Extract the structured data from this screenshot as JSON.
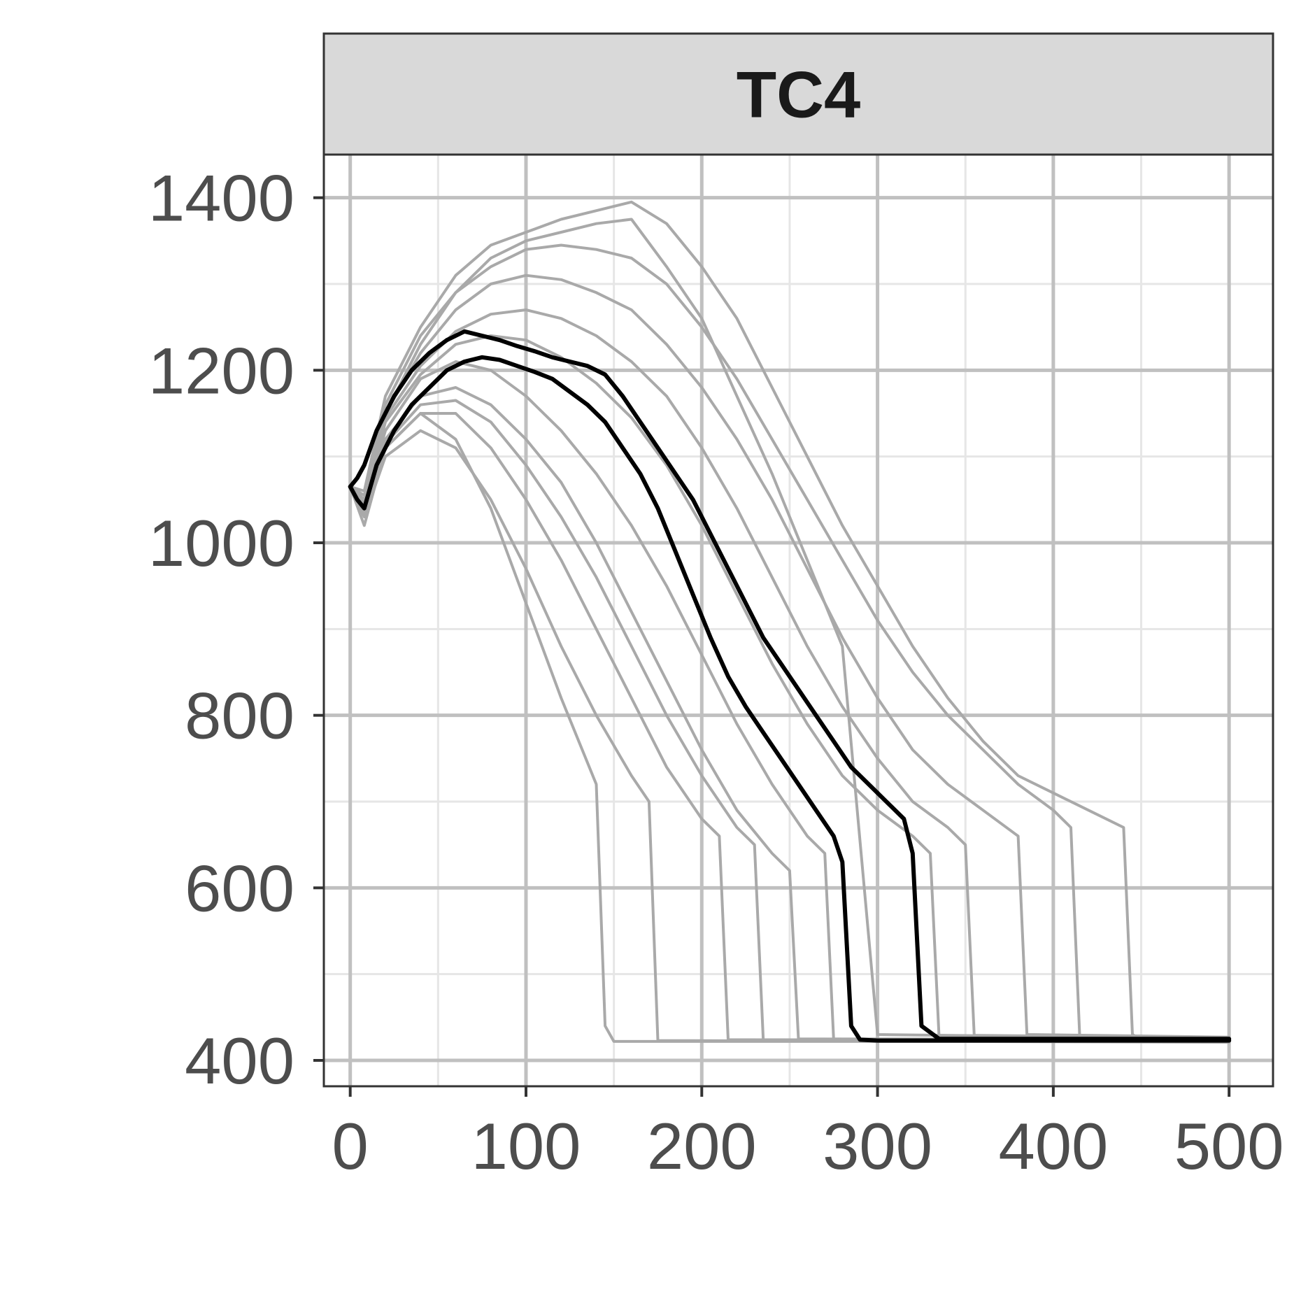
{
  "chart_data": {
    "type": "line",
    "facet_label": "TC4",
    "xlabel": "",
    "ylabel": "",
    "xlim": [
      -15,
      525
    ],
    "ylim": [
      370,
      1450
    ],
    "x_ticks": [
      0,
      100,
      200,
      300,
      400,
      500
    ],
    "x_tick_labels": [
      "0",
      "100",
      "200",
      "300",
      "400",
      "500"
    ],
    "y_ticks": [
      400,
      600,
      800,
      1000,
      1200,
      1400
    ],
    "y_tick_labels": [
      "400",
      "600",
      "800",
      "1000",
      "1200",
      "1400"
    ],
    "grid": true,
    "colors": {
      "ensemble": "#a9a9a9",
      "highlight": "#000000",
      "panel_border": "#333333",
      "strip_fill": "#d9d9d9",
      "grid": "#c0c0c0",
      "minor_grid": "#e6e6e6"
    },
    "series": [
      {
        "color": "#a9a9a9",
        "x": [
          0,
          8,
          20,
          40,
          60,
          80,
          100,
          120,
          140,
          145,
          150,
          500
        ],
        "y": [
          1065,
          1020,
          1110,
          1150,
          1120,
          1040,
          930,
          820,
          720,
          440,
          422,
          422
        ]
      },
      {
        "color": "#a9a9a9",
        "x": [
          0,
          8,
          20,
          40,
          60,
          80,
          100,
          120,
          140,
          160,
          180,
          200,
          220,
          240,
          260,
          280,
          300,
          500
        ],
        "y": [
          1065,
          1050,
          1150,
          1230,
          1290,
          1330,
          1350,
          1360,
          1370,
          1375,
          1320,
          1260,
          1170,
          1080,
          980,
          880,
          430,
          425
        ]
      },
      {
        "color": "#a9a9a9",
        "x": [
          0,
          8,
          20,
          40,
          60,
          80,
          100,
          120,
          140,
          160,
          180,
          200,
          220,
          240,
          260,
          280,
          300,
          320,
          340,
          360,
          380,
          400,
          420,
          440,
          445,
          450,
          500
        ],
        "y": [
          1065,
          1060,
          1170,
          1250,
          1310,
          1345,
          1360,
          1375,
          1385,
          1395,
          1370,
          1320,
          1260,
          1180,
          1100,
          1020,
          950,
          880,
          820,
          770,
          730,
          710,
          690,
          670,
          430,
          424,
          424
        ]
      },
      {
        "color": "#a9a9a9",
        "x": [
          0,
          8,
          20,
          40,
          60,
          80,
          100,
          120,
          140,
          160,
          180,
          200,
          220,
          240,
          260,
          280,
          300,
          320,
          340,
          360,
          380,
          400,
          410,
          415,
          500
        ],
        "y": [
          1065,
          1055,
          1160,
          1240,
          1290,
          1320,
          1340,
          1345,
          1340,
          1330,
          1300,
          1250,
          1190,
          1120,
          1050,
          980,
          910,
          850,
          800,
          760,
          720,
          690,
          670,
          428,
          426
        ]
      },
      {
        "color": "#a9a9a9",
        "x": [
          0,
          8,
          20,
          40,
          60,
          80,
          100,
          120,
          140,
          160,
          180,
          200,
          220,
          240,
          260,
          280,
          300,
          320,
          340,
          360,
          380,
          385,
          500
        ],
        "y": [
          1065,
          1050,
          1150,
          1220,
          1270,
          1300,
          1310,
          1305,
          1290,
          1270,
          1230,
          1180,
          1120,
          1050,
          970,
          890,
          820,
          760,
          720,
          690,
          660,
          430,
          427
        ]
      },
      {
        "color": "#a9a9a9",
        "x": [
          0,
          8,
          20,
          40,
          60,
          80,
          100,
          120,
          140,
          160,
          180,
          200,
          220,
          240,
          260,
          270,
          275,
          500
        ],
        "y": [
          1065,
          1045,
          1130,
          1190,
          1210,
          1200,
          1170,
          1130,
          1080,
          1020,
          950,
          870,
          790,
          720,
          660,
          640,
          425,
          424
        ]
      },
      {
        "color": "#a9a9a9",
        "x": [
          0,
          8,
          20,
          40,
          60,
          80,
          100,
          120,
          140,
          160,
          180,
          200,
          220,
          240,
          250,
          255,
          500
        ],
        "y": [
          1065,
          1040,
          1120,
          1170,
          1180,
          1160,
          1120,
          1070,
          1000,
          920,
          840,
          760,
          690,
          640,
          620,
          425,
          423
        ]
      },
      {
        "color": "#a9a9a9",
        "x": [
          0,
          8,
          20,
          40,
          60,
          80,
          100,
          120,
          140,
          160,
          180,
          200,
          210,
          215,
          500
        ],
        "y": [
          1065,
          1035,
          1110,
          1150,
          1150,
          1110,
          1050,
          980,
          900,
          820,
          740,
          680,
          660,
          424,
          422
        ]
      },
      {
        "color": "#a9a9a9",
        "x": [
          0,
          8,
          20,
          40,
          60,
          80,
          100,
          120,
          140,
          160,
          170,
          175,
          500
        ],
        "y": [
          1065,
          1030,
          1100,
          1130,
          1110,
          1050,
          970,
          880,
          800,
          730,
          700,
          423,
          421
        ]
      },
      {
        "color": "#a9a9a9",
        "x": [
          0,
          8,
          20,
          40,
          60,
          80,
          100,
          120,
          140,
          160,
          180,
          200,
          220,
          240,
          260,
          280,
          300,
          320,
          340,
          350,
          355,
          500
        ],
        "y": [
          1065,
          1048,
          1145,
          1205,
          1245,
          1265,
          1270,
          1260,
          1240,
          1210,
          1170,
          1110,
          1040,
          960,
          880,
          810,
          750,
          700,
          670,
          650,
          429,
          426
        ]
      },
      {
        "color": "#a9a9a9",
        "x": [
          0,
          8,
          20,
          40,
          60,
          80,
          100,
          120,
          140,
          160,
          180,
          200,
          220,
          240,
          260,
          280,
          300,
          320,
          330,
          335,
          500
        ],
        "y": [
          1065,
          1046,
          1140,
          1195,
          1230,
          1240,
          1235,
          1215,
          1185,
          1145,
          1090,
          1020,
          940,
          860,
          790,
          730,
          690,
          660,
          640,
          428,
          425
        ]
      },
      {
        "color": "#a9a9a9",
        "x": [
          0,
          8,
          20,
          40,
          60,
          80,
          100,
          120,
          140,
          160,
          180,
          200,
          220,
          230,
          235,
          500
        ],
        "y": [
          1065,
          1038,
          1115,
          1160,
          1165,
          1140,
          1090,
          1030,
          960,
          880,
          800,
          730,
          670,
          650,
          424,
          422
        ]
      },
      {
        "color": "#000000",
        "x": [
          0,
          4,
          8,
          15,
          25,
          35,
          45,
          55,
          65,
          75,
          85,
          95,
          105,
          115,
          125,
          135,
          145,
          155,
          165,
          175,
          185,
          195,
          205,
          215,
          225,
          235,
          245,
          255,
          265,
          275,
          280,
          285,
          290,
          300,
          500
        ],
        "y": [
          1065,
          1050,
          1040,
          1090,
          1130,
          1160,
          1180,
          1200,
          1210,
          1215,
          1212,
          1205,
          1198,
          1190,
          1175,
          1160,
          1140,
          1110,
          1080,
          1040,
          990,
          940,
          890,
          845,
          810,
          780,
          750,
          720,
          690,
          660,
          630,
          440,
          424,
          423,
          423
        ]
      },
      {
        "color": "#000000",
        "x": [
          0,
          4,
          8,
          15,
          25,
          35,
          45,
          55,
          65,
          75,
          85,
          95,
          105,
          115,
          125,
          135,
          145,
          155,
          165,
          175,
          185,
          195,
          205,
          215,
          225,
          235,
          245,
          255,
          265,
          275,
          285,
          295,
          305,
          315,
          320,
          325,
          335,
          500
        ],
        "y": [
          1065,
          1075,
          1090,
          1130,
          1170,
          1200,
          1220,
          1235,
          1245,
          1240,
          1235,
          1228,
          1222,
          1215,
          1210,
          1205,
          1195,
          1170,
          1140,
          1110,
          1080,
          1050,
          1010,
          970,
          930,
          890,
          860,
          830,
          800,
          770,
          740,
          720,
          700,
          680,
          640,
          440,
          425,
          425
        ]
      }
    ]
  }
}
